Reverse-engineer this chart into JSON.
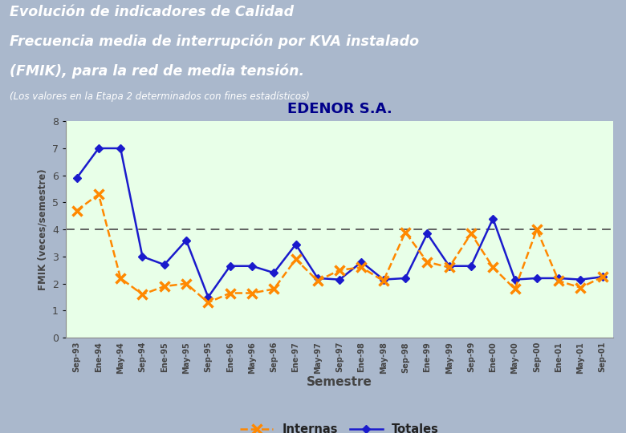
{
  "title": "EDENOR S.A.",
  "header_line1": "Evolución de indicadores de Calidad",
  "header_line2": "Frecuencia media de interrupción por KVA instalado",
  "header_line3": "(FMIK), para la red de media tensión.",
  "header_line4": "(Los valores en la Etapa 2 determinados con fines estadísticos)",
  "xlabel": "Semestre",
  "ylabel": "FMIK (veces/semestre)",
  "categories": [
    "Sep-93",
    "Ene-94",
    "May-94",
    "Sep-94",
    "Ene-95",
    "May-95",
    "Sep-95",
    "Ene-96",
    "May-96",
    "Sep-96",
    "Ene-97",
    "May-97",
    "Sep-97",
    "Ene-98",
    "May-98",
    "Sep-98",
    "Ene-99",
    "May-99",
    "Sep-99",
    "Ene-00",
    "May-00",
    "Sep-00",
    "Ene-01",
    "May-01",
    "Sep-01"
  ],
  "totales": [
    5.9,
    7.0,
    7.0,
    3.0,
    2.7,
    3.6,
    1.5,
    2.65,
    2.65,
    2.4,
    3.45,
    2.2,
    2.15,
    2.8,
    2.15,
    2.2,
    3.85,
    2.65,
    2.65,
    4.4,
    2.15,
    2.2,
    2.2,
    2.15,
    2.25
  ],
  "internas": [
    4.7,
    5.3,
    2.2,
    1.6,
    1.9,
    2.0,
    1.3,
    1.65,
    1.65,
    1.8,
    2.9,
    2.1,
    2.5,
    2.6,
    2.1,
    3.9,
    2.8,
    2.6,
    3.85,
    2.6,
    1.8,
    4.0,
    2.1,
    1.85,
    2.25
  ],
  "reference_line": 4.0,
  "ylim": [
    0,
    8
  ],
  "yticks": [
    0,
    1,
    2,
    3,
    4,
    5,
    6,
    7,
    8
  ],
  "header_bg": "#1a9090",
  "plot_area_bg": "#e8ffe8",
  "outer_bg": "#aab8cc",
  "inner_bg": "#d0dce8",
  "totales_color": "#1a1acc",
  "internas_color": "#ff8800",
  "ref_line_color": "#555555",
  "title_color": "#00008B",
  "tick_label_color": "#444444"
}
